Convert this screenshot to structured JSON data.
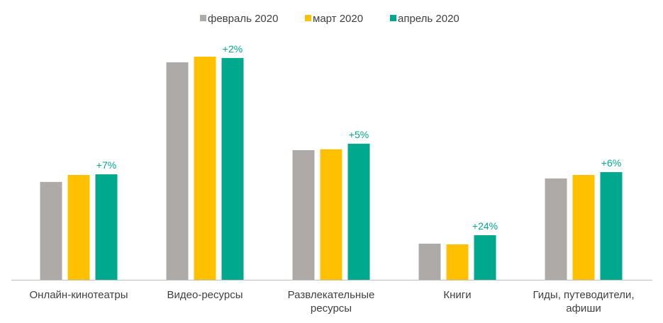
{
  "chart_data": {
    "type": "bar",
    "title": "",
    "xlabel": "",
    "ylabel": "",
    "ylim": [
      0,
      100
    ],
    "categories": [
      [
        "Онлайн-кинотеатры"
      ],
      [
        "Видео-ресурсы"
      ],
      [
        "Развлекательные",
        "ресурсы"
      ],
      [
        "Книги"
      ],
      [
        "Гиды, путеводители,",
        "афиши"
      ]
    ],
    "series": [
      {
        "name": "февраль 2020",
        "color": "#ADAAA8",
        "values": [
          45.0,
          100.0,
          59.6,
          16.6,
          46.6
        ]
      },
      {
        "name": "март 2020",
        "color": "#FFC000",
        "values": [
          48.2,
          102.6,
          60.0,
          16.3,
          48.2
        ]
      },
      {
        "name": "апрель 2020",
        "color": "#00A88E",
        "values": [
          48.5,
          102.0,
          62.6,
          20.5,
          49.5
        ]
      }
    ],
    "annotations": [
      "+7%",
      "+2%",
      "+5%",
      "+24%",
      "+6%"
    ],
    "annotation_color": "#00A88E",
    "grid": false,
    "legend_position": "top-center"
  }
}
